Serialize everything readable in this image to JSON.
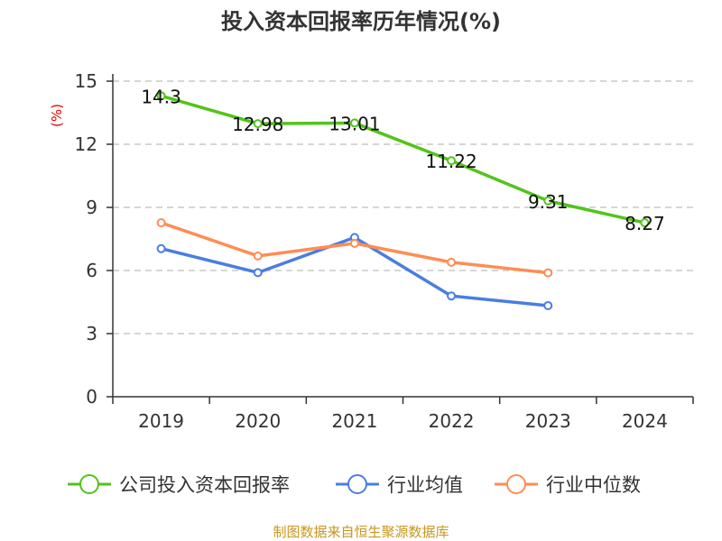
{
  "chart_data": {
    "type": "line",
    "title": "投入资本回报率历年情况(%)",
    "ylabel": "(%)",
    "categories": [
      "2019",
      "2020",
      "2021",
      "2022",
      "2023",
      "2024"
    ],
    "ylim": [
      0,
      15
    ],
    "yticks": [
      0,
      3,
      6,
      9,
      12,
      15
    ],
    "grid": true,
    "legend_position": "bottom",
    "series": [
      {
        "name": "公司投入资本回报率",
        "color": "#52c41a",
        "values": [
          14.3,
          12.98,
          13.01,
          11.22,
          9.31,
          8.27
        ],
        "labels": [
          "14.3",
          "12.98",
          "13.01",
          "11.22",
          "9.31",
          "8.27"
        ]
      },
      {
        "name": "行业均值",
        "color": "#4a7ee0",
        "values": [
          7.04,
          5.9,
          7.57,
          4.79,
          4.33,
          null
        ]
      },
      {
        "name": "行业中位数",
        "color": "#ff8c55",
        "values": [
          8.27,
          6.69,
          7.29,
          6.39,
          5.89,
          null
        ]
      }
    ],
    "source": "制图数据来自恒生聚源数据库"
  }
}
